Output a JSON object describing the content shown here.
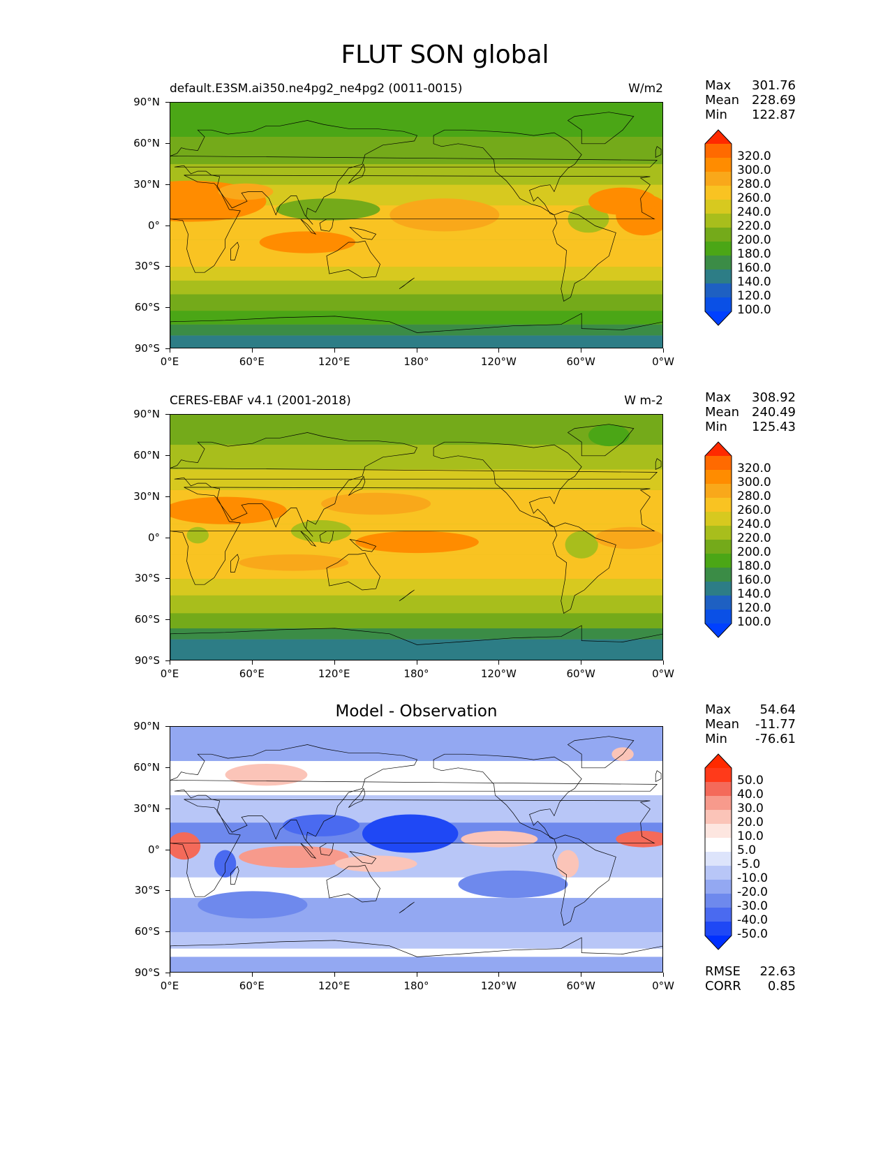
{
  "page_title": "FLUT SON global",
  "panels": [
    {
      "left_title": "default.E3SM.ai350.ne4pg2_ne4pg2 (0011-0015)",
      "center_title": "",
      "units": "W/m2",
      "stats": [
        {
          "label": "Max",
          "value": "301.76"
        },
        {
          "label": "Mean",
          "value": "228.69"
        },
        {
          "label": "Min",
          "value": "122.87"
        }
      ],
      "colorbar": {
        "labels": [
          "320.0",
          "300.0",
          "280.0",
          "260.0",
          "240.0",
          "220.0",
          "200.0",
          "180.0",
          "160.0",
          "140.0",
          "120.0",
          "100.0"
        ],
        "colors": [
          "#ff2a00",
          "#ff6a00",
          "#ff8c00",
          "#f9a81a",
          "#f9c322",
          "#d7c91f",
          "#a8be1c",
          "#74aa1a",
          "#4ba616",
          "#3b8c46",
          "#2d7d86",
          "#1e60c2",
          "#0a50e6",
          "#0040ff"
        ]
      },
      "field": "model",
      "extra_stats": []
    },
    {
      "left_title": "CERES-EBAF v4.1 (2001-2018)",
      "center_title": "",
      "units": "W m-2",
      "stats": [
        {
          "label": "Max",
          "value": "308.92"
        },
        {
          "label": "Mean",
          "value": "240.49"
        },
        {
          "label": "Min",
          "value": "125.43"
        }
      ],
      "colorbar": {
        "labels": [
          "320.0",
          "300.0",
          "280.0",
          "260.0",
          "240.0",
          "220.0",
          "200.0",
          "180.0",
          "160.0",
          "140.0",
          "120.0",
          "100.0"
        ],
        "colors": [
          "#ff2a00",
          "#ff6a00",
          "#ff8c00",
          "#f9a81a",
          "#f9c322",
          "#d7c91f",
          "#a8be1c",
          "#74aa1a",
          "#4ba616",
          "#3b8c46",
          "#2d7d86",
          "#1e60c2",
          "#0a50e6",
          "#0040ff"
        ]
      },
      "field": "obs",
      "extra_stats": []
    },
    {
      "left_title": "",
      "center_title": "Model - Observation",
      "units": "",
      "stats": [
        {
          "label": "Max",
          "value": "54.64"
        },
        {
          "label": "Mean",
          "value": "-11.77"
        },
        {
          "label": "Min",
          "value": "-76.61"
        }
      ],
      "colorbar": {
        "labels": [
          "50.0",
          "40.0",
          "30.0",
          "20.0",
          "10.0",
          "5.0",
          "-5.0",
          "-10.0",
          "-20.0",
          "-30.0",
          "-40.0",
          "-50.0"
        ],
        "colors": [
          "#ff2a00",
          "#ff3a1a",
          "#f46a5a",
          "#f79a8c",
          "#fbc4b8",
          "#fde6e0",
          "#ffffff",
          "#dde4fb",
          "#b8c6f7",
          "#93a8f2",
          "#6e89ed",
          "#4a6af0",
          "#1f48f5",
          "#0030ff"
        ]
      },
      "field": "diff",
      "extra_stats": [
        {
          "label": "RMSE",
          "value": "22.63"
        },
        {
          "label": "CORR",
          "value": "0.85"
        }
      ]
    }
  ],
  "axes": {
    "y_ticks": [
      "90°N",
      "60°N",
      "30°N",
      "0°",
      "30°S",
      "60°S",
      "90°S"
    ],
    "x_ticks": [
      "0°E",
      "60°E",
      "120°E",
      "180°",
      "120°W",
      "60°W",
      "0°W"
    ]
  },
  "chart_data": [
    {
      "type": "heatmap",
      "title": "default.E3SM.ai350.ne4pg2_ne4pg2 (0011-0015)",
      "units": "W/m2",
      "xlim": [
        0,
        360
      ],
      "ylim": [
        -90,
        90
      ],
      "stats": {
        "max": 301.76,
        "mean": 228.69,
        "min": 122.87
      },
      "levels": [
        100,
        120,
        140,
        160,
        180,
        200,
        220,
        240,
        260,
        280,
        300,
        320
      ]
    },
    {
      "type": "heatmap",
      "title": "CERES-EBAF v4.1 (2001-2018)",
      "units": "W m-2",
      "xlim": [
        0,
        360
      ],
      "ylim": [
        -90,
        90
      ],
      "stats": {
        "max": 308.92,
        "mean": 240.49,
        "min": 125.43
      },
      "levels": [
        100,
        120,
        140,
        160,
        180,
        200,
        220,
        240,
        260,
        280,
        300,
        320
      ]
    },
    {
      "type": "heatmap",
      "title": "Model - Observation",
      "xlim": [
        0,
        360
      ],
      "ylim": [
        -90,
        90
      ],
      "stats": {
        "max": 54.64,
        "mean": -11.77,
        "min": -76.61,
        "rmse": 22.63,
        "corr": 0.85
      },
      "levels": [
        -50,
        -40,
        -30,
        -20,
        -10,
        -5,
        5,
        10,
        20,
        30,
        40,
        50
      ]
    }
  ]
}
